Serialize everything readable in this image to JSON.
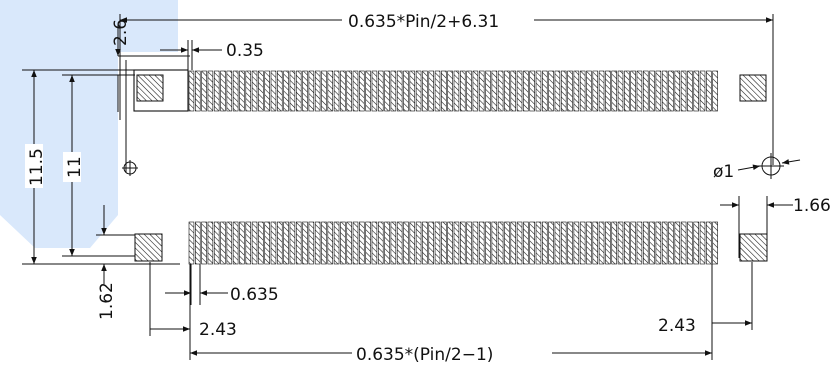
{
  "colors": {
    "ink": "#111111",
    "background": "#ffffff",
    "watermark": "#d9e8fb"
  },
  "icons": {
    "hole_marker": "crosshair-circle-icon",
    "pad_fill": "diagonal-hatch"
  },
  "dimensions": {
    "overall_length": "0.635*Pin/2+6.31",
    "top_offset": "2.6",
    "pin_width": "0.35",
    "outer_height": "11.5",
    "inner_height": "11",
    "hole_diameter": "ø1",
    "side_pad_width": "1.66",
    "bottom_offset": "1.62",
    "pitch": "0.635",
    "left_pad_gap": "2.43",
    "right_pad_gap": "2.43",
    "pin_span": "0.635*(Pin/2−1)"
  },
  "pin_rows": {
    "top_row_count": 84,
    "bottom_row_count": 84
  }
}
